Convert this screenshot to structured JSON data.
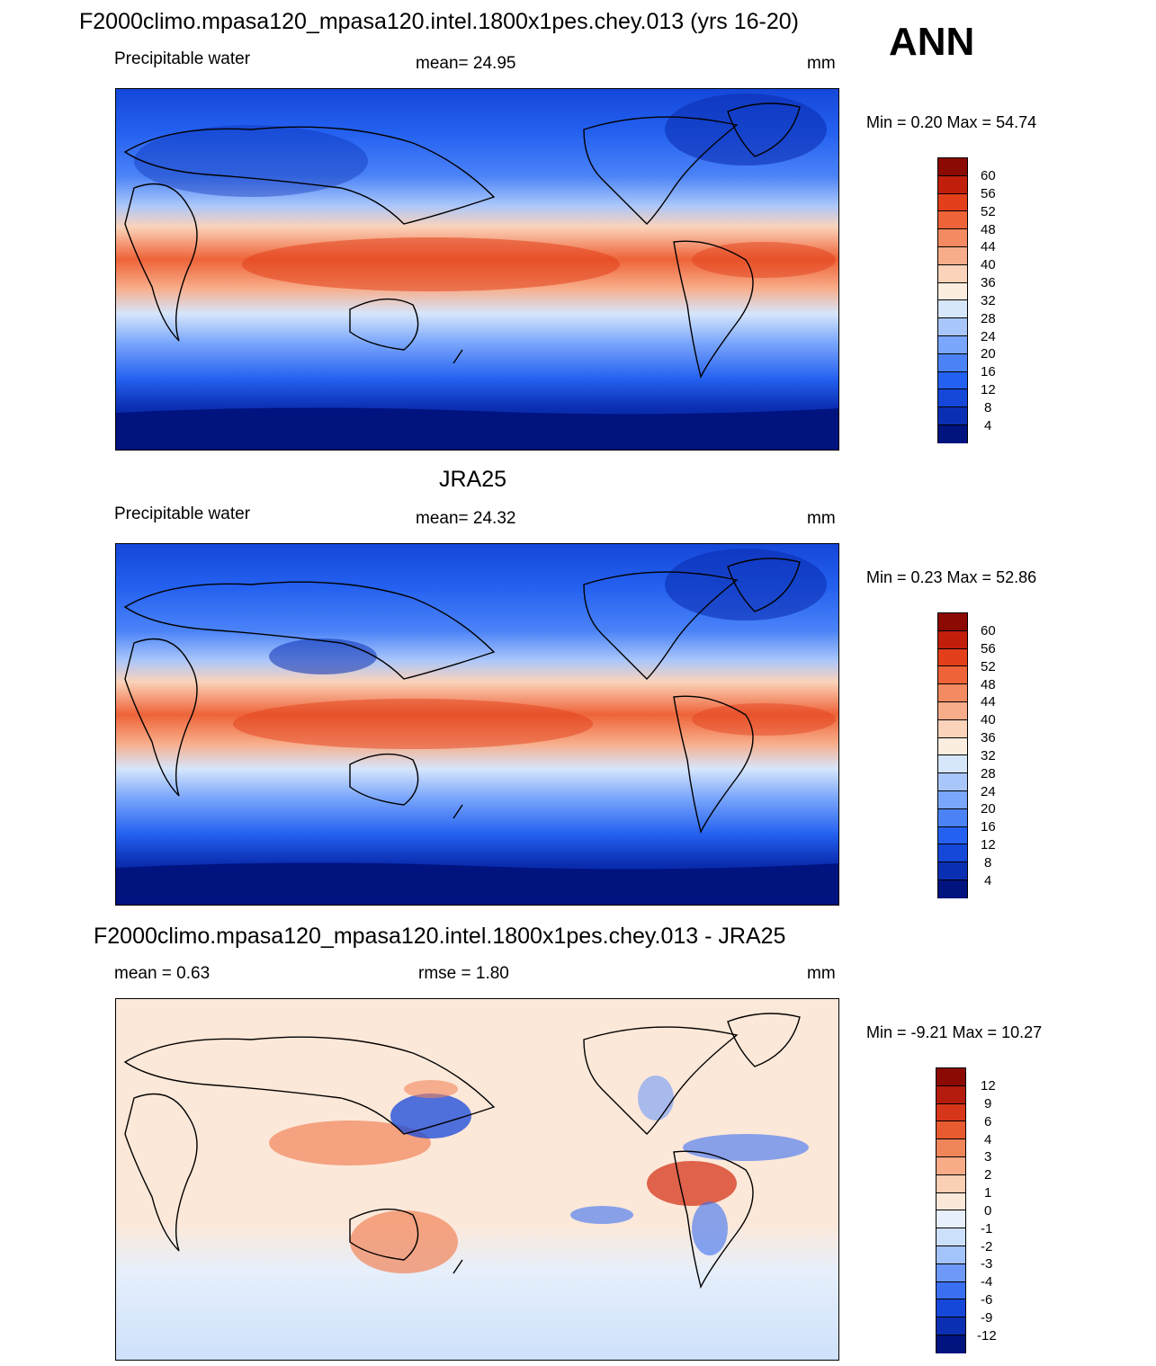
{
  "title": "F2000climo.mpasa120_mpasa120.intel.1800x1pes.chey.013 (yrs 16-20)",
  "season": "ANN",
  "colors": {
    "abs_scale": [
      "#00137f",
      "#0b2fb3",
      "#1547d9",
      "#2461f0",
      "#4b83f7",
      "#7aa6fb",
      "#a9c6fb",
      "#d6e6fb",
      "#fbeee1",
      "#fbd3ba",
      "#f8ad8a",
      "#f48a61",
      "#ee6338",
      "#e23f1a",
      "#c11f0c",
      "#8b0a03"
    ],
    "diff_scale": [
      "#00137f",
      "#0b2fb3",
      "#1547d9",
      "#3b6ff2",
      "#6f99f8",
      "#a3c3fb",
      "#cde0fb",
      "#e6effb",
      "#fce8d9",
      "#fbcfb3",
      "#f7ab86",
      "#f1855a",
      "#e85a2f",
      "#d6361a",
      "#b31c0c",
      "#8b0a03"
    ]
  },
  "panels": [
    {
      "id": "model",
      "header": "",
      "left_label": "Precipitable water",
      "center_label": "mean=  24.95",
      "units": "mm",
      "minmax": "Min =   0.20 Max =  54.74",
      "colorbar_labels": [
        "60",
        "56",
        "52",
        "48",
        "44",
        "40",
        "36",
        "32",
        "28",
        "24",
        "20",
        "16",
        "12",
        "8",
        "4"
      ]
    },
    {
      "id": "obs",
      "header": "JRA25",
      "left_label": "Precipitable water",
      "center_label": "mean=  24.32",
      "units": "mm",
      "minmax": "Min =   0.23 Max =  52.86",
      "colorbar_labels": [
        "60",
        "56",
        "52",
        "48",
        "44",
        "40",
        "36",
        "32",
        "28",
        "24",
        "20",
        "16",
        "12",
        "8",
        "4"
      ]
    },
    {
      "id": "diff",
      "header": "F2000climo.mpasa120_mpasa120.intel.1800x1pes.chey.013 - JRA25",
      "left_label": "mean =    0.63",
      "center_label": "rmse =    1.80",
      "units": "mm",
      "minmax": "Min =  -9.21 Max =  10.27",
      "colorbar_labels": [
        "12",
        "9",
        "6",
        "4",
        "3",
        "2",
        "1",
        "0",
        "-1",
        "-2",
        "-3",
        "-4",
        "-6",
        "-9",
        "-12"
      ]
    }
  ]
}
